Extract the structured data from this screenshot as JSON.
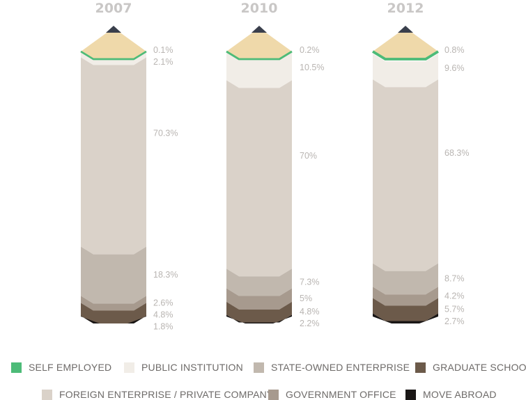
{
  "colors": {
    "self_employed": "#4dbb78",
    "public_institution": "#f1ede7",
    "foreign_private": "#dad2c9",
    "state_owned": "#c1b8ae",
    "government_office": "#a79a8e",
    "graduate_school": "#6c5a4a",
    "move_abroad": "#1a1716",
    "pencil_tip": "#efd9aa",
    "graphite": "#3a3f4c"
  },
  "legend": [
    {
      "key": "self_employed",
      "label": "SELF EMPLOYED"
    },
    {
      "key": "public_institution",
      "label": "PUBLIC INSTITUTION"
    },
    {
      "key": "state_owned",
      "label": "STATE-OWNED ENTERPRISE"
    },
    {
      "key": "graduate_school",
      "label": "GRADUATE SCHOOL"
    },
    {
      "key": "foreign_private",
      "label": "FOREIGN ENTERPRISE / PRIVATE COMPANY"
    },
    {
      "key": "government_office",
      "label": "GOVERNMENT OFFICE"
    },
    {
      "key": "move_abroad",
      "label": "MOVE ABROAD"
    }
  ],
  "chart_data": {
    "type": "bar",
    "stacked": true,
    "orientation": "vertical",
    "categories": [
      "2007",
      "2010",
      "2012"
    ],
    "series": [
      {
        "name": "SELF EMPLOYED",
        "key": "self_employed",
        "values": [
          0.1,
          0.2,
          0.8
        ],
        "labels": [
          "0.1%",
          "0.2%",
          "0.8%"
        ]
      },
      {
        "name": "PUBLIC INSTITUTION",
        "key": "public_institution",
        "values": [
          2.1,
          10.5,
          9.6
        ],
        "labels": [
          "2.1%",
          "10.5%",
          "9.6%"
        ]
      },
      {
        "name": "FOREIGN ENTERPRISE / PRIVATE COMPANY",
        "key": "foreign_private",
        "values": [
          70.3,
          70,
          68.3
        ],
        "labels": [
          "70.3%",
          "70%",
          "68.3%"
        ]
      },
      {
        "name": "STATE-OWNED ENTERPRISE",
        "key": "state_owned",
        "values": [
          18.3,
          7.3,
          8.7
        ],
        "labels": [
          "18.3%",
          "7.3%",
          "8.7%"
        ]
      },
      {
        "name": "GOVERNMENT OFFICE",
        "key": "government_office",
        "values": [
          2.6,
          5,
          4.2
        ],
        "labels": [
          "2.6%",
          "5%",
          "4.2%"
        ]
      },
      {
        "name": "GRADUATE SCHOOL",
        "key": "graduate_school",
        "values": [
          4.8,
          4.8,
          5.7
        ],
        "labels": [
          "4.8%",
          "4.8%",
          "5.7%"
        ]
      },
      {
        "name": "MOVE ABROAD",
        "key": "move_abroad",
        "values": [
          1.8,
          2.2,
          2.7
        ],
        "labels": [
          "1.8%",
          "2.2%",
          "2.7%"
        ]
      }
    ],
    "ylim": [
      0,
      100
    ],
    "grid": false,
    "legend_position": "bottom"
  }
}
